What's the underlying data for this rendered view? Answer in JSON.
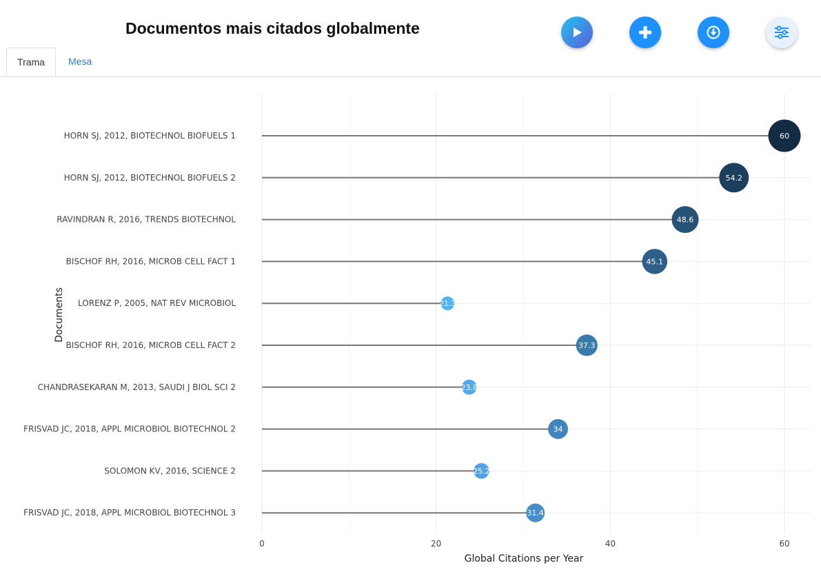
{
  "header": {
    "title": "Documentos mais citados globalmente"
  },
  "toolbar": {
    "play_icon": "play-icon",
    "add_icon": "plus-icon",
    "download_icon": "download-icon",
    "settings_icon": "sliders-icon"
  },
  "tabs": [
    {
      "label": "Trama",
      "active": true
    },
    {
      "label": "Mesa",
      "active": false
    }
  ],
  "colors": {
    "play_gradient_start": "#22c0f0",
    "play_gradient_end": "#5a5fd8",
    "button_blue": "#1e90ff",
    "settings_bg": "#e8f0fb",
    "stem": "#777777",
    "grid": "#eeeeee"
  },
  "chart_data": {
    "type": "lollipop",
    "xlabel": "Global Citations per Year",
    "ylabel": "Documents",
    "xlim": [
      0,
      63
    ],
    "xticks": [
      0,
      20,
      40,
      60
    ],
    "grid": true,
    "categories": [
      "HORN SJ, 2012, BIOTECHNOL BIOFUELS 1",
      "HORN SJ, 2012, BIOTECHNOL BIOFUELS 2",
      "RAVINDRAN R, 2016, TRENDS BIOTECHNOL",
      "BISCHOF RH, 2016, MICROB CELL FACT 1",
      "LORENZ P, 2005, NAT REV MICROBIOL",
      "BISCHOF RH, 2016, MICROB CELL FACT 2",
      "CHANDRASEKARAN M, 2013, SAUDI J BIOL SCI 2",
      "FRISVAD JC, 2018, APPL MICROBIOL BIOTECHNOL 2",
      "SOLOMON KV, 2016, SCIENCE 2",
      "FRISVAD JC, 2018, APPL MICROBIOL BIOTECHNOL 3"
    ],
    "values": [
      60,
      54.2,
      48.6,
      45.1,
      21.3,
      37.3,
      23.8,
      34,
      25.2,
      31.4
    ],
    "labels": [
      "60",
      "54.2",
      "48.6",
      "45.1",
      "21.3",
      "37.3",
      "23.8",
      "34",
      "25.2",
      "31.4"
    ],
    "color_scale": [
      "#56b1f7",
      "#132b43"
    ]
  }
}
